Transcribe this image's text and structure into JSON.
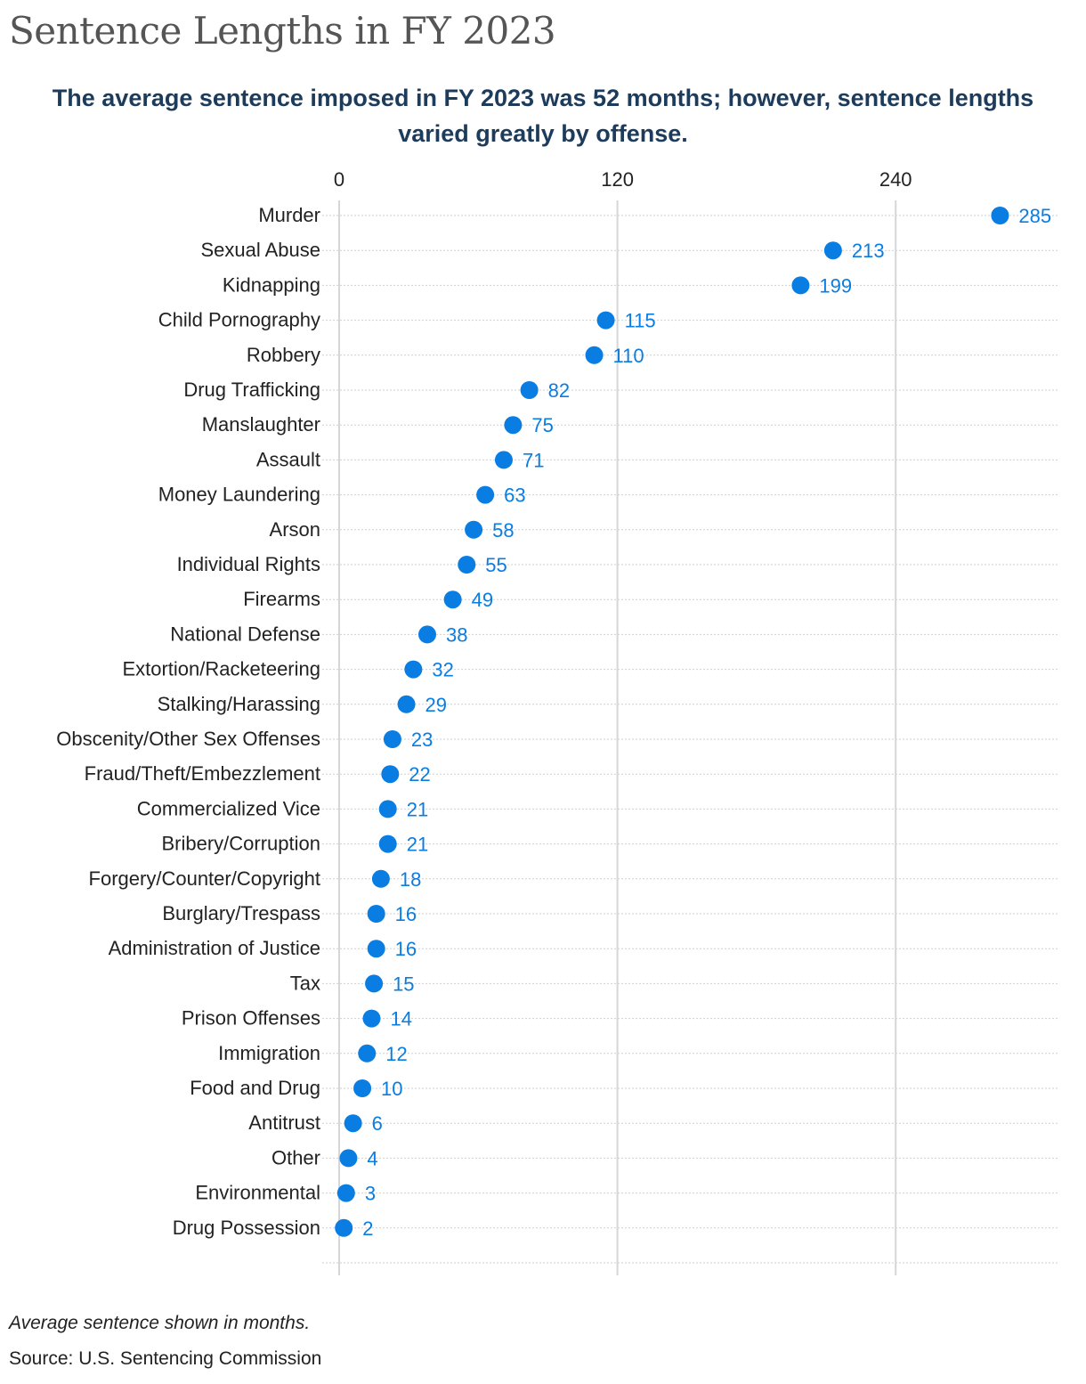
{
  "title": "Sentence Lengths in FY 2023",
  "subtitle": "The average sentence imposed in FY 2023 was 52 months; however, sentence lengths varied greatly by offense.",
  "note": "Average sentence shown in months.",
  "source": "Source: U.S. Sentencing Commission",
  "colors": {
    "dot": "#0a7de3",
    "label": "#0a7de3",
    "axis_line": "#d6d6d6",
    "grid": "#cfcfcf"
  },
  "chart_data": {
    "type": "scatter",
    "orientation": "horizontal",
    "x_axis_position": "top",
    "xlim": [
      0,
      310
    ],
    "x_ticks": [
      0,
      120,
      240
    ],
    "grid": true,
    "categories": [
      "Murder",
      "Sexual Abuse",
      "Kidnapping",
      "Child Pornography",
      "Robbery",
      "Drug Trafficking",
      "Manslaughter",
      "Assault",
      "Money Laundering",
      "Arson",
      "Individual Rights",
      "Firearms",
      "National Defense",
      "Extortion/Racketeering",
      "Stalking/Harassing",
      "Obscenity/Other Sex Offenses",
      "Fraud/Theft/Embezzlement",
      "Commercialized Vice",
      "Bribery/Corruption",
      "Forgery/Counter/Copyright",
      "Burglary/Trespass",
      "Administration of Justice",
      "Tax",
      "Prison Offenses",
      "Immigration",
      "Food and Drug",
      "Antitrust",
      "Other",
      "Environmental",
      "Drug Possession"
    ],
    "values": [
      285,
      213,
      199,
      115,
      110,
      82,
      75,
      71,
      63,
      58,
      55,
      49,
      38,
      32,
      29,
      23,
      22,
      21,
      21,
      18,
      16,
      16,
      15,
      14,
      12,
      10,
      6,
      4,
      3,
      2
    ]
  }
}
